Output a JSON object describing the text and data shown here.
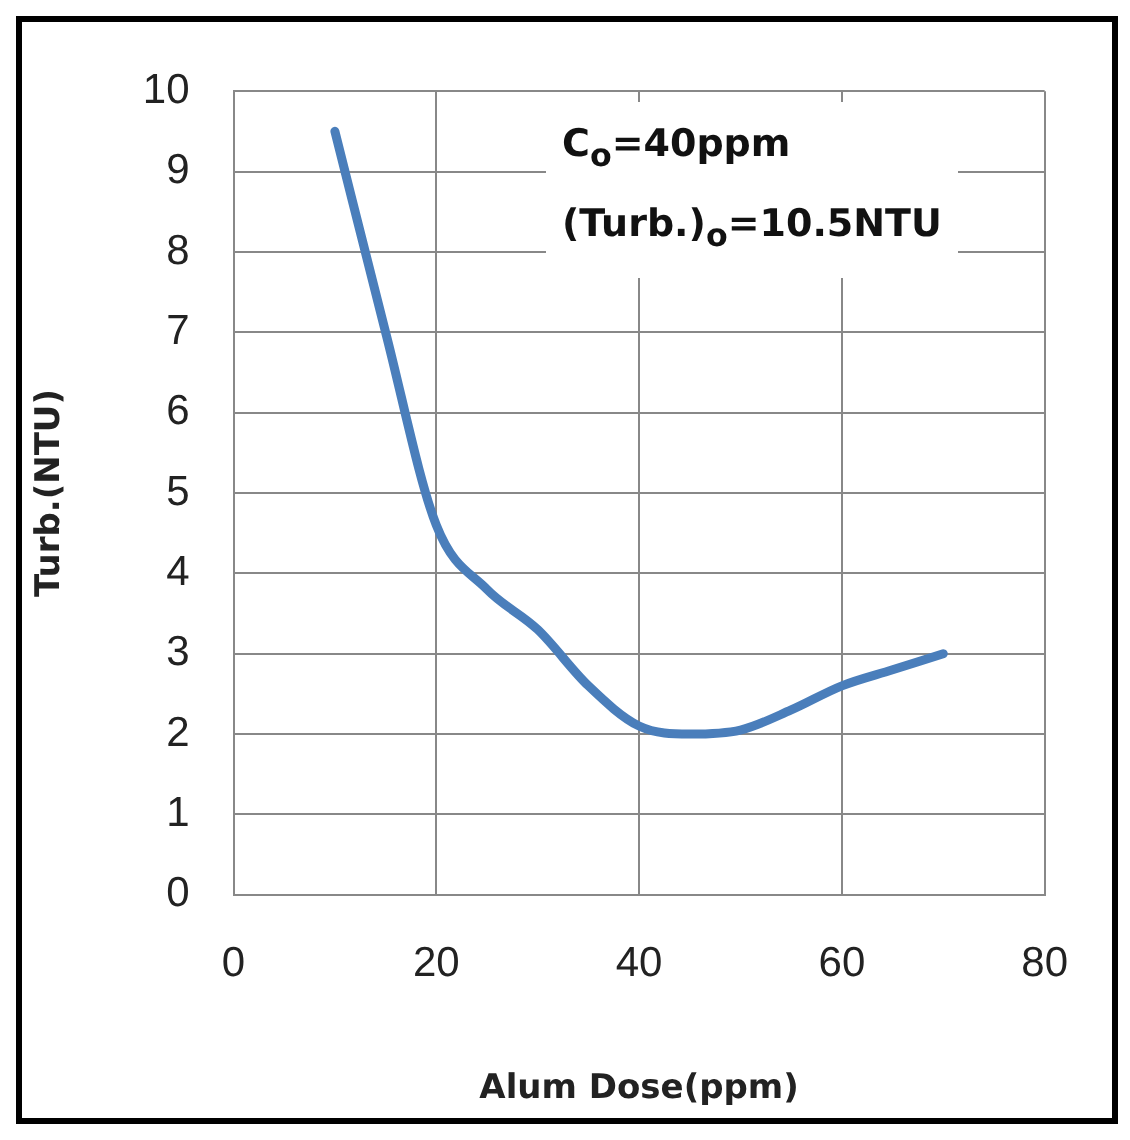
{
  "chart_data": {
    "type": "line",
    "xlabel": "Alum Dose(ppm)",
    "ylabel": "Turb.(NTU)",
    "annotations": [
      "C$_{o}$=40ppm",
      "(Turb.)$_{o}$=10.5NTU"
    ],
    "x": [
      10,
      15,
      20,
      25,
      30,
      35,
      40,
      45,
      50,
      55,
      60,
      65,
      70
    ],
    "series": [
      {
        "color": "#4a7ebb",
        "values": [
          9.5,
          7.0,
          4.6,
          3.8,
          3.3,
          2.6,
          2.1,
          2.0,
          2.05,
          2.3,
          2.6,
          2.8,
          3.0
        ]
      }
    ],
    "xlim": [
      0,
      80
    ],
    "xticks": [
      0,
      20,
      40,
      60,
      80
    ],
    "ylim": [
      0,
      10
    ],
    "yticks": [
      0,
      1,
      2,
      3,
      4,
      5,
      6,
      7,
      8,
      9,
      10
    ],
    "grid": true,
    "legend": false,
    "marker": "none",
    "line_style": "solid"
  }
}
